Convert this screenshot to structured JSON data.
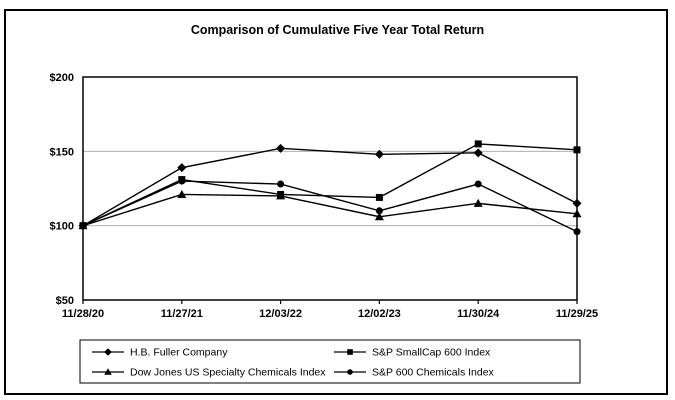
{
  "window": {
    "background_color": "#ffffff",
    "frame_border_color": "#000000"
  },
  "chart_data": {
    "type": "line",
    "title": "Comparison of Cumulative Five Year Total Return",
    "x_labels": [
      "11/28/20",
      "11/27/21",
      "12/03/22",
      "12/02/23",
      "11/30/24",
      "11/29/25"
    ],
    "y_ticks": [
      50,
      100,
      150,
      200
    ],
    "y_tick_labels": [
      "$50",
      "$100",
      "$150",
      "$200"
    ],
    "ylim": [
      50,
      200
    ],
    "grid_values": [
      100,
      150
    ],
    "grid_on": true,
    "grid_color": "#b0b0b0",
    "line_color": "#000000",
    "marker_color": "#000000",
    "legend_position": "bottom",
    "legend_columns": 2,
    "series": [
      {
        "name": "H.B. Fuller Company",
        "marker": "diamond",
        "values": [
          100,
          139,
          152,
          148,
          149,
          115
        ]
      },
      {
        "name": "S&P SmallCap 600 Index",
        "marker": "square",
        "values": [
          100,
          131,
          121,
          119,
          155,
          151
        ]
      },
      {
        "name": "Dow Jones US Specialty Chemicals Index",
        "marker": "triangle",
        "values": [
          100,
          121,
          120,
          106,
          115,
          108
        ]
      },
      {
        "name": "S&P 600 Chemicals Index",
        "marker": "circle",
        "values": [
          100,
          130,
          128,
          110,
          128,
          96
        ]
      }
    ]
  }
}
